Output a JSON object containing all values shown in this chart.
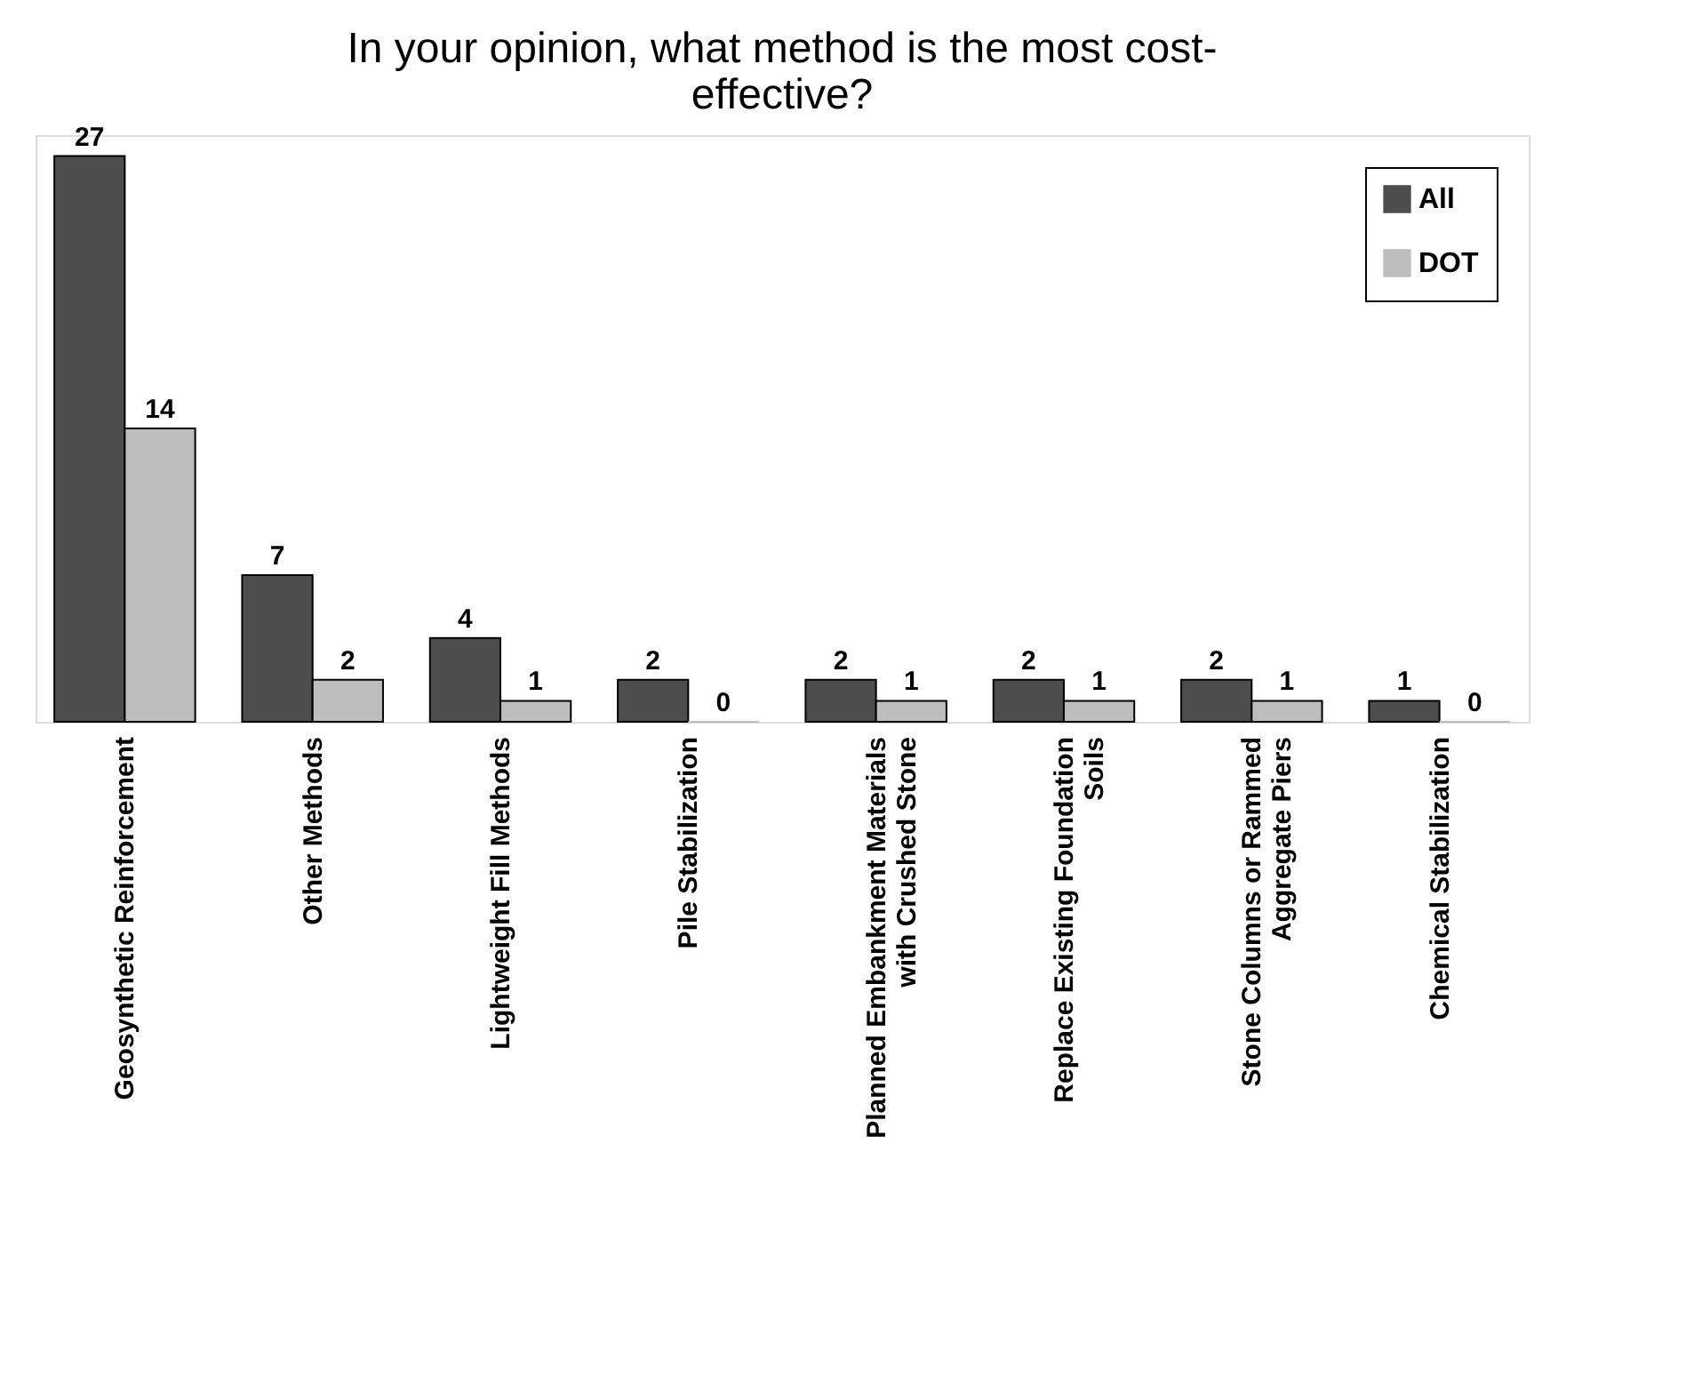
{
  "chart_data": {
    "type": "bar",
    "title": "In your opinion, what method is the most cost-effective?",
    "categories": [
      "Geosynthetic Reinforcement",
      "Other Methods",
      "Lightweight Fill Methods",
      "Pile Stabilization",
      "Planned Embankment Materials with Crushed Stone",
      "Replace Existing Foundation Soils",
      "Stone Columns or Rammed Aggregate Piers",
      "Chemical Stabilization"
    ],
    "series": [
      {
        "name": "All",
        "color": "#4d4d4d",
        "values": [
          27,
          7,
          4,
          2,
          2,
          2,
          2,
          1
        ]
      },
      {
        "name": "DOT",
        "color": "#bdbdbd",
        "values": [
          14,
          2,
          1,
          0,
          1,
          1,
          1,
          0
        ]
      }
    ],
    "data_labels": true,
    "legend": "top right",
    "tick_labels": "x",
    "grid": false
  }
}
